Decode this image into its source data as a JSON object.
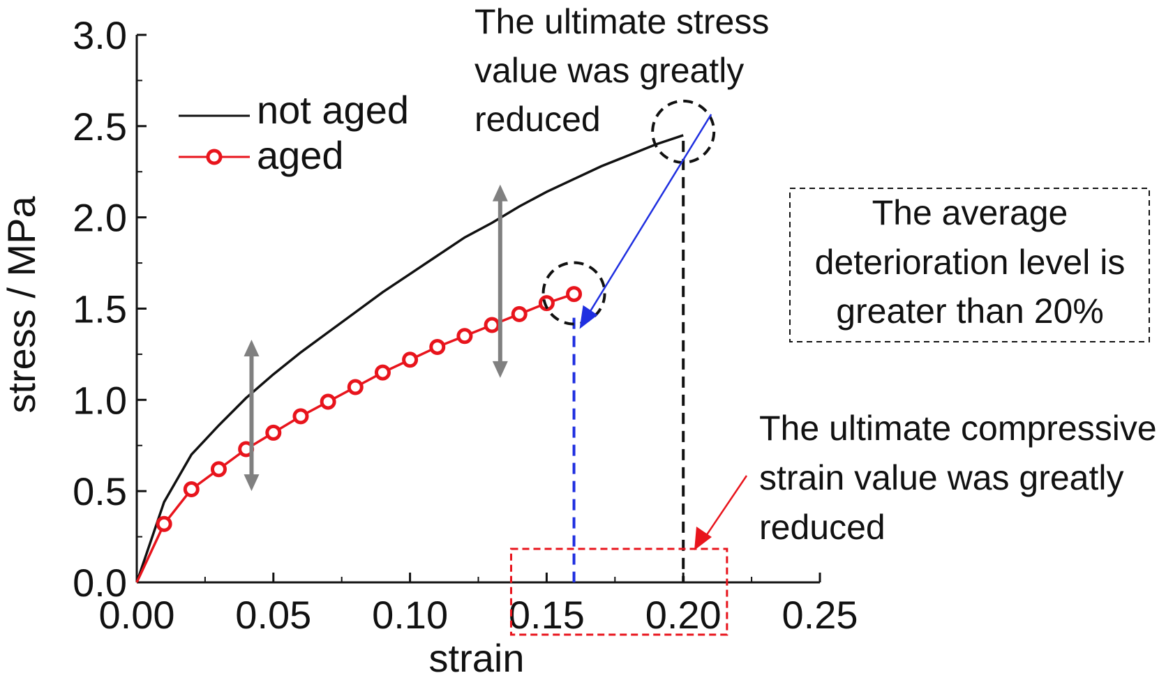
{
  "chart_data": {
    "type": "line",
    "xlabel": "strain",
    "ylabel": "stress / MPa",
    "xlim": [
      0,
      0.25
    ],
    "ylim": [
      0,
      3.0
    ],
    "x_ticks": [
      "0.00",
      "0.05",
      "0.10",
      "0.15",
      "0.20",
      "0.25"
    ],
    "y_ticks": [
      "0.0",
      "0.5",
      "1.0",
      "1.5",
      "2.0",
      "2.5",
      "3.0"
    ],
    "grid": false,
    "legend_position": "top-left",
    "series": [
      {
        "name": "not aged",
        "color": "#111111",
        "marker": "none",
        "x": [
          0,
          0.01,
          0.02,
          0.03,
          0.04,
          0.05,
          0.06,
          0.07,
          0.08,
          0.09,
          0.1,
          0.11,
          0.12,
          0.13,
          0.14,
          0.15,
          0.16,
          0.17,
          0.18,
          0.19,
          0.2
        ],
        "y": [
          0,
          0.44,
          0.7,
          0.86,
          1.01,
          1.14,
          1.26,
          1.37,
          1.48,
          1.59,
          1.69,
          1.79,
          1.89,
          1.97,
          2.06,
          2.14,
          2.21,
          2.28,
          2.34,
          2.4,
          2.45
        ]
      },
      {
        "name": "aged",
        "color": "#e8141c",
        "marker": "open-circle",
        "x": [
          0,
          0.01,
          0.02,
          0.03,
          0.04,
          0.05,
          0.06,
          0.07,
          0.08,
          0.09,
          0.1,
          0.11,
          0.12,
          0.13,
          0.14,
          0.15,
          0.16
        ],
        "y": [
          0,
          0.32,
          0.51,
          0.62,
          0.73,
          0.82,
          0.91,
          0.99,
          1.07,
          1.15,
          1.22,
          1.29,
          1.35,
          1.41,
          1.47,
          1.53,
          1.58
        ]
      }
    ],
    "annotations": {
      "stress_note": [
        "The ultimate stress",
        "value was greatly",
        "reduced"
      ],
      "strain_note": [
        "The ultimate compressive",
        "strain value was greatly",
        "reduced"
      ],
      "deterioration_note": [
        "The average",
        "deterioration level is",
        "greater than 20%"
      ],
      "peak_not_aged": {
        "x": 0.2,
        "y": 2.45
      },
      "peak_aged": {
        "x": 0.16,
        "y": 1.58
      },
      "gap_arrow_1": {
        "x": 0.042,
        "y_low": 0.5,
        "y_high": 1.33
      },
      "gap_arrow_2": {
        "x": 0.133,
        "y_low": 1.12,
        "y_high": 2.18
      },
      "strain_box": {
        "x_min": 0.137,
        "x_max": 0.216
      }
    },
    "colors": {
      "annotation_arrow": "#1f2fe0",
      "drop_line_aged": "#1f2fe0",
      "drop_line_not_aged": "#111111",
      "gap_arrow": "#808080",
      "strain_box": "#e8141c"
    }
  }
}
